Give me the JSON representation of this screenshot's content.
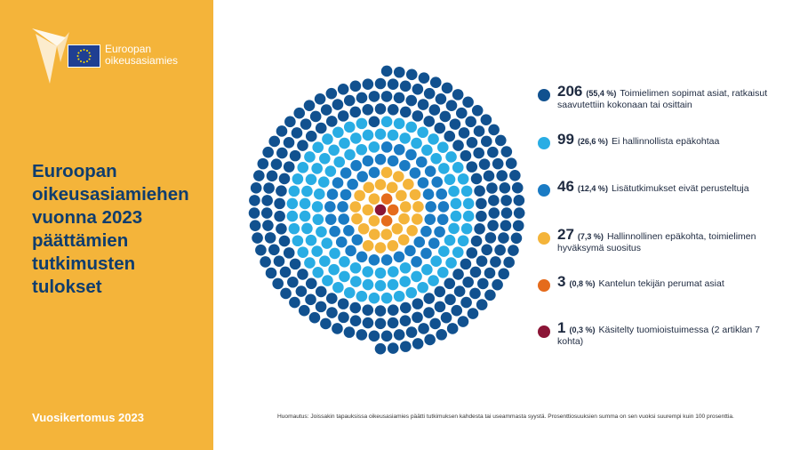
{
  "brand": {
    "logo_line1": "Euroopan",
    "logo_line2": "oikeusasiamies"
  },
  "title": "Euroopan\noikeusasiamiehen\nvuonna 2023\npäättämien\ntutkimusten\ntulokset",
  "report_label": "Vuosikertomus 2023",
  "colors": {
    "sidebar": "#f4b43a",
    "title_text": "#0f3d6e"
  },
  "footnote": "Huomautus: Joissakin tapauksissa oikeusasiamies päätti tutkimuksen kahdesta tai useammasta syystä. Prosenttiosuuksien summa on sen vuoksi suurempi kuin 100 prosenttia.",
  "chart_data": {
    "type": "dot-cluster",
    "categories": [
      {
        "count": "206",
        "percent": "(55,4 %)",
        "label": "Toimielimen sopimat asiat, ratkaisut saavutettiin kokonaan tai osittain",
        "value": 206,
        "color": "#11518f"
      },
      {
        "count": "99",
        "percent": "(26,6 %)",
        "label": "Ei hallinnollista epäkohtaa",
        "value": 99,
        "color": "#29ade4"
      },
      {
        "count": "46",
        "percent": "(12,4 %)",
        "label": "Lisätutkimukset eivät perusteltuja",
        "value": 46,
        "color": "#1a7bc4"
      },
      {
        "count": "27",
        "percent": "(7,3 %)",
        "label": "Hallinnollinen epäkohta, toimielimen hyväksymä suositus",
        "value": 27,
        "color": "#f4b43a"
      },
      {
        "count": "3",
        "percent": "(0,8 %)",
        "label": "Kantelun tekijän perumat asiat",
        "value": 3,
        "color": "#e56b1c"
      },
      {
        "count": "1",
        "percent": "(0,3 %)",
        "label": "Käsitelty tuomioistuimessa (2 artiklan 7 kohta)",
        "value": 1,
        "color": "#8b1536"
      }
    ]
  }
}
